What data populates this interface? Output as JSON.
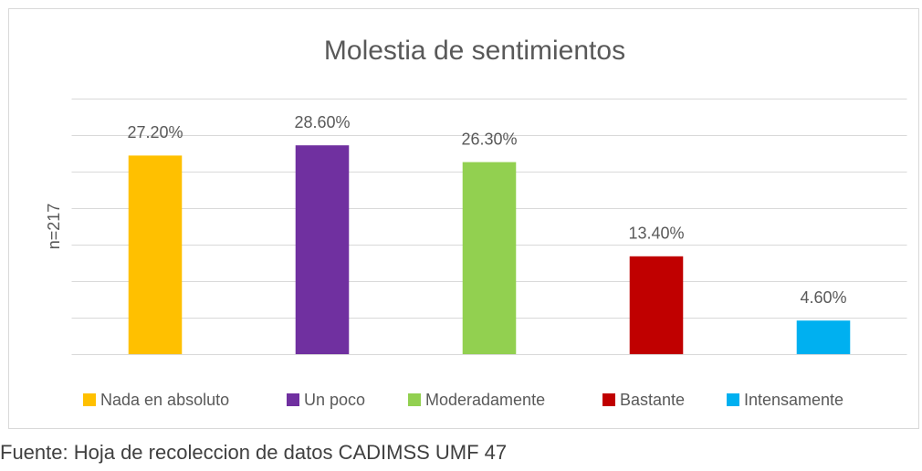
{
  "chart_data": {
    "type": "bar",
    "title": "Molestia de sentimientos",
    "y_label": "n=217",
    "categories": [
      "Nada en absoluto",
      "Un poco",
      "Moderadamente",
      "Bastante",
      "Intensamente"
    ],
    "values": [
      27.2,
      28.6,
      26.3,
      13.4,
      4.6
    ],
    "value_labels": [
      "27.20%",
      "28.60%",
      "26.30%",
      "13.40%",
      "4.60%"
    ],
    "colors": [
      "#ffc000",
      "#7030a0",
      "#92d050",
      "#c00000",
      "#00b0f0"
    ],
    "ylim": [
      0,
      35
    ],
    "yticks": [
      0,
      5,
      10,
      15,
      20,
      25,
      30,
      35
    ],
    "grid": true,
    "legend": "bottom",
    "source": "Fuente: Hoja de recoleccion de datos CADIMSS UMF 47"
  }
}
